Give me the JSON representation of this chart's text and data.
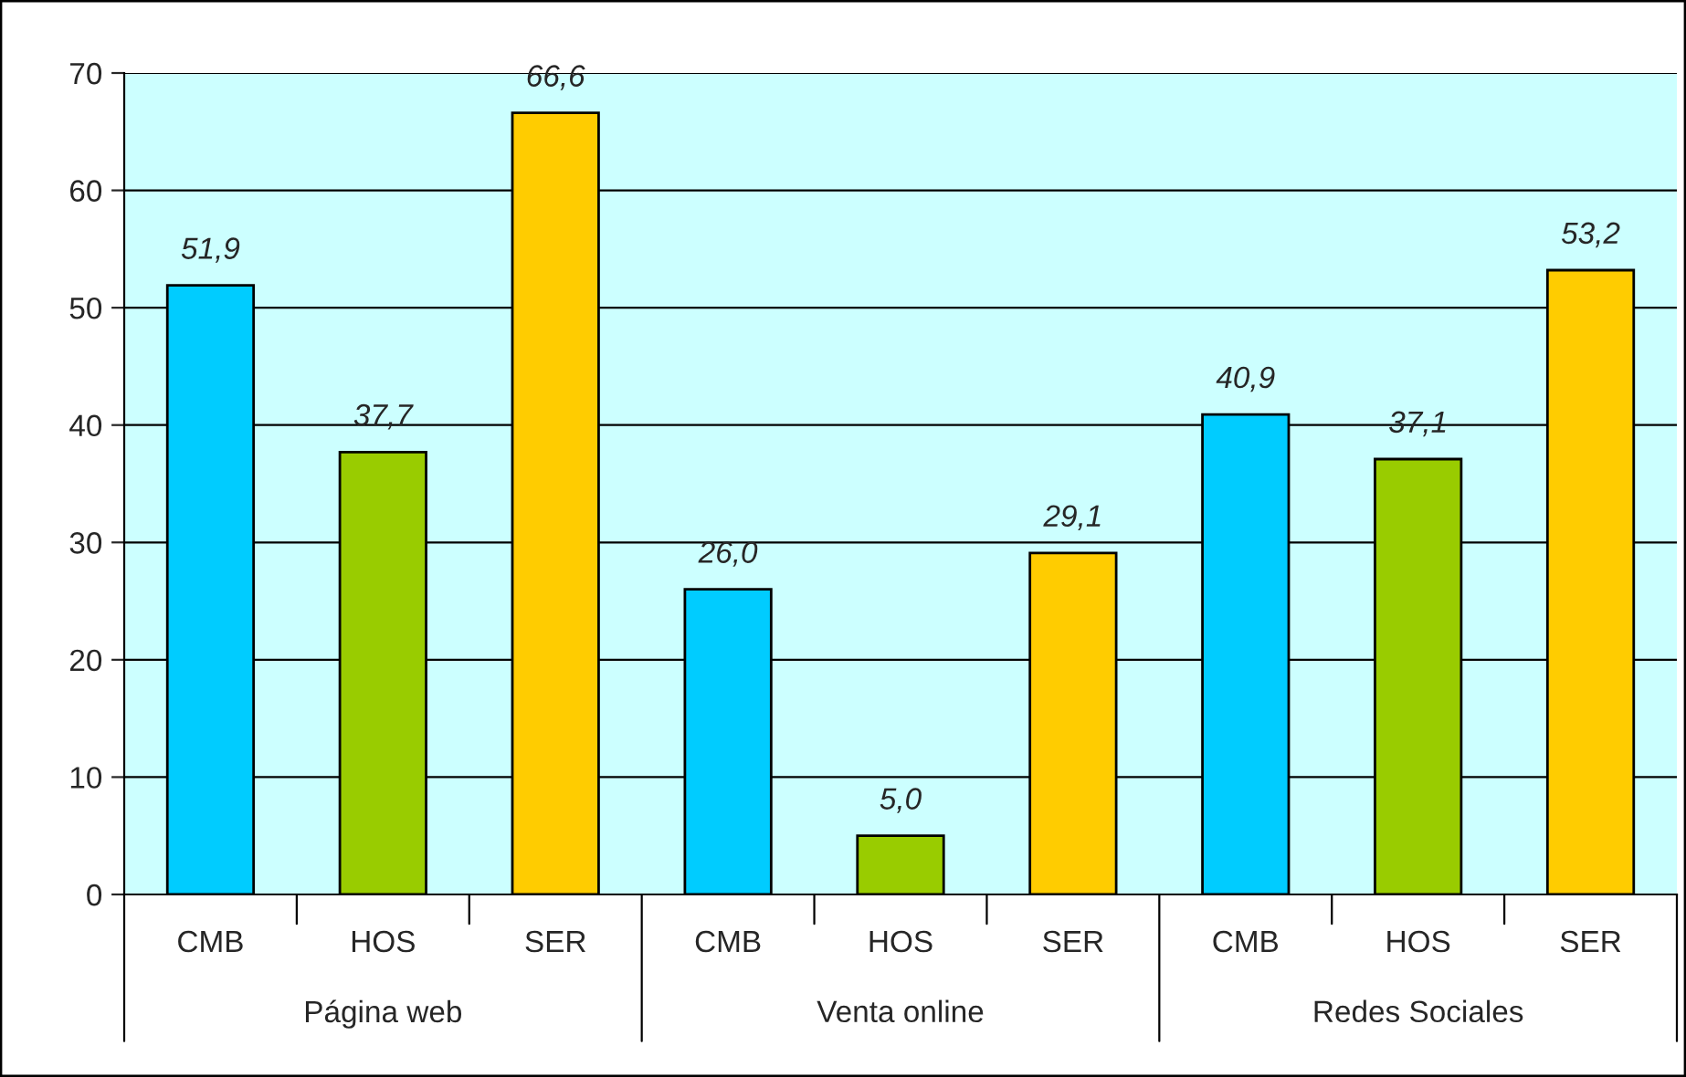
{
  "chart_data": {
    "type": "bar",
    "categories": [
      "CMB",
      "HOS",
      "SER",
      "CMB",
      "HOS",
      "SER",
      "CMB",
      "HOS",
      "SER"
    ],
    "values": [
      51.9,
      37.7,
      66.6,
      26.0,
      5.0,
      29.1,
      40.9,
      37.1,
      53.2
    ],
    "colors": [
      "#00ccff",
      "#99cc00",
      "#ffcc00",
      "#00ccff",
      "#99cc00",
      "#ffcc00",
      "#00ccff",
      "#99cc00",
      "#ffcc00"
    ],
    "value_labels": [
      "51,9",
      "37,7",
      "66,6",
      "26,0",
      "5,0",
      "29,1",
      "40,9",
      "37,1",
      "53,2"
    ],
    "annotations": [
      "Página web",
      "Venta online",
      "Redes Sociales"
    ],
    "ylim": [
      0,
      70
    ],
    "yticks": [
      0,
      10,
      20,
      30,
      40,
      50,
      60,
      70
    ],
    "grid": "y",
    "legend": false
  }
}
